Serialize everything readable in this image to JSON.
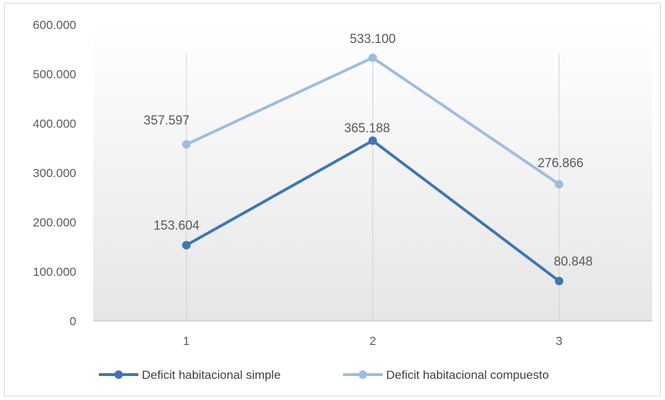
{
  "chart_data": {
    "type": "line",
    "categories": [
      "1",
      "2",
      "3"
    ],
    "series": [
      {
        "name": "Deficit habitacional simple",
        "values": [
          153604,
          365188,
          80848
        ],
        "labels": [
          "153.604",
          "365.188",
          "80.848"
        ],
        "color": "#3f76b3"
      },
      {
        "name": "Deficit habitacional compuesto",
        "values": [
          357597,
          533100,
          276866
        ],
        "labels": [
          "357.597",
          "533.100",
          "276.866"
        ],
        "color": "#9dbde0"
      }
    ],
    "ylim": [
      0,
      600000
    ],
    "yticks": [
      {
        "value": 0,
        "label": "0"
      },
      {
        "value": 100000,
        "label": "100.000"
      },
      {
        "value": 200000,
        "label": "200.000"
      },
      {
        "value": 300000,
        "label": "300.000"
      },
      {
        "value": 400000,
        "label": "400.000"
      },
      {
        "value": 500000,
        "label": "500.000"
      },
      {
        "value": 600000,
        "label": "600.000"
      }
    ],
    "grid": "vertical drop lines at categories",
    "legend_position": "bottom"
  }
}
